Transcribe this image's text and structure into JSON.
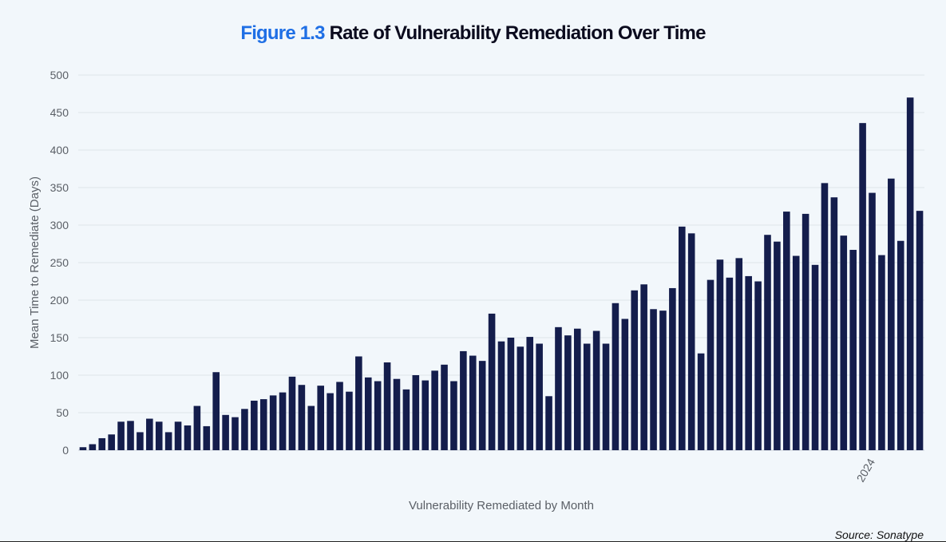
{
  "header": {
    "figure_label": "Figure 1.3",
    "title": "Rate of Vulnerability Remediation Over Time"
  },
  "footer": {
    "source": "Source: Sonatype"
  },
  "colors": {
    "bar": "#141d4c",
    "grid": "#dde4ea",
    "accent": "#1f6fe5"
  },
  "chart_data": {
    "type": "bar",
    "title": "Rate of Vulnerability Remediation Over Time",
    "xlabel": "Vulnerability Remediated by Month",
    "ylabel": "Mean Time to Remediate (Days)",
    "ylim": [
      0,
      500
    ],
    "yticks": [
      0,
      50,
      100,
      150,
      200,
      250,
      300,
      350,
      400,
      450,
      500
    ],
    "xtick_labels": [
      {
        "index": 83,
        "label": "2024"
      }
    ],
    "grid": "horizontal",
    "values": [
      4,
      8,
      16,
      21,
      38,
      39,
      24,
      42,
      38,
      24,
      38,
      33,
      59,
      32,
      104,
      47,
      44,
      55,
      66,
      68,
      73,
      77,
      98,
      87,
      59,
      86,
      76,
      91,
      78,
      125,
      97,
      92,
      117,
      95,
      81,
      100,
      93,
      106,
      114,
      92,
      132,
      126,
      119,
      182,
      145,
      150,
      138,
      151,
      142,
      72,
      164,
      153,
      162,
      142,
      159,
      142,
      196,
      175,
      213,
      221,
      188,
      186,
      216,
      298,
      289,
      129,
      227,
      254,
      230,
      256,
      232,
      225,
      287,
      278,
      318,
      259,
      315,
      247,
      356,
      337,
      286,
      267,
      436,
      343,
      260,
      362,
      279,
      470,
      319
    ]
  }
}
